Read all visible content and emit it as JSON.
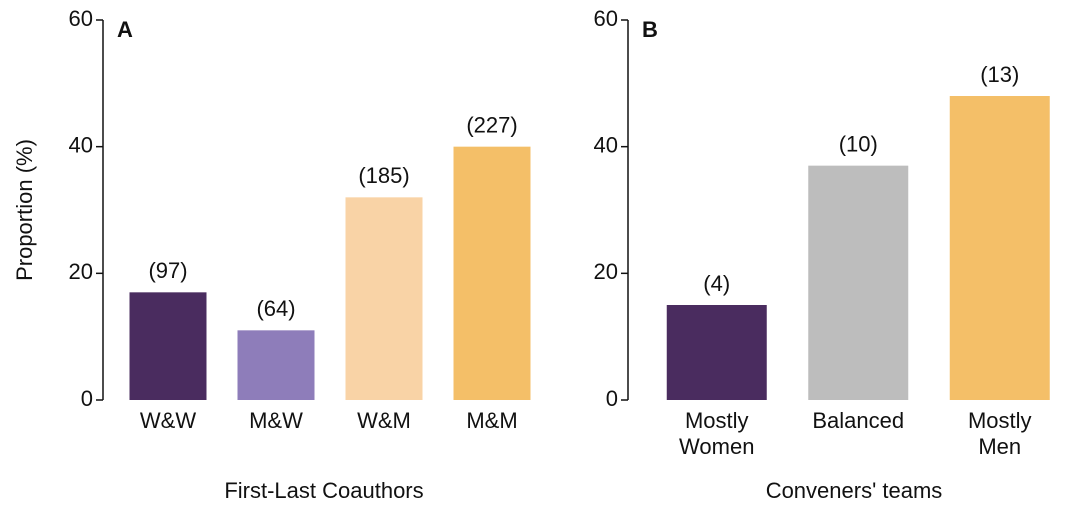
{
  "chart_data": [
    {
      "type": "bar",
      "panel": "A",
      "xlabel": "First-Last Coauthors",
      "ylabel": "Proportion (%)",
      "categories": [
        "W&W",
        "M&W",
        "W&M",
        "M&M"
      ],
      "values": [
        17,
        11,
        32,
        40
      ],
      "annotations": [
        "(97)",
        "(64)",
        "(185)",
        "(227)"
      ],
      "colors": [
        "#4a2c5f",
        "#8e7dba",
        "#f9d3a6",
        "#f4bf68"
      ],
      "ylim": [
        0,
        60
      ],
      "yticks": [
        0,
        20,
        40,
        60
      ]
    },
    {
      "type": "bar",
      "panel": "B",
      "xlabel": "Conveners' teams",
      "categories": [
        "Mostly Women",
        "Balanced",
        "Mostly Men"
      ],
      "values": [
        15,
        37,
        48
      ],
      "annotations": [
        "(4)",
        "(10)",
        "(13)"
      ],
      "colors": [
        "#4a2c5f",
        "#bdbdbd",
        "#f4bf68"
      ],
      "ylim": [
        0,
        60
      ],
      "yticks": [
        0,
        20,
        40,
        60
      ]
    }
  ]
}
